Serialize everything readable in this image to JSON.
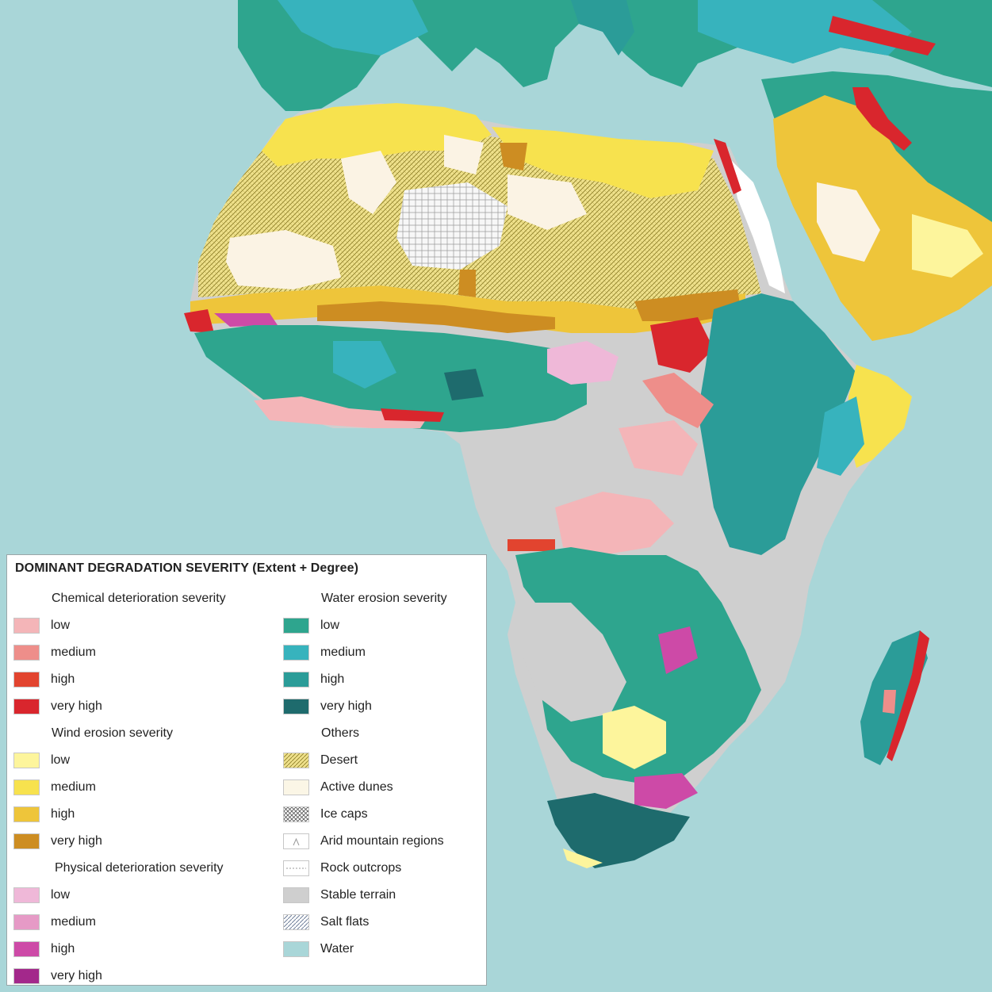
{
  "legend": {
    "title": "DOMINANT DEGRADATION SEVERITY (Extent + Degree)",
    "chemical": {
      "title": "Chemical deterioration severity",
      "items": [
        {
          "label": "low",
          "color": "#f4b5b8"
        },
        {
          "label": "medium",
          "color": "#ee8e8a"
        },
        {
          "label": "high",
          "color": "#e2442f"
        },
        {
          "label": "very high",
          "color": "#d9262d"
        }
      ]
    },
    "wind": {
      "title": "Wind erosion severity",
      "items": [
        {
          "label": "low",
          "color": "#fdf59c"
        },
        {
          "label": "medium",
          "color": "#f7e24e"
        },
        {
          "label": "high",
          "color": "#eec53a"
        },
        {
          "label": "very high",
          "color": "#cd8d22"
        }
      ]
    },
    "physical": {
      "title": "Physical deterioration severity",
      "items": [
        {
          "label": "low",
          "color": "#efb8d8"
        },
        {
          "label": "medium",
          "color": "#e69ac6"
        },
        {
          "label": "high",
          "color": "#cd4aa7"
        },
        {
          "label": "very high",
          "color": "#a3288b"
        }
      ]
    },
    "water": {
      "title": "Water erosion severity",
      "items": [
        {
          "label": "low",
          "color": "#2ea58e"
        },
        {
          "label": "medium",
          "color": "#37b3bd"
        },
        {
          "label": "high",
          "color": "#2b9c98"
        },
        {
          "label": "very high",
          "color": "#1e6b6d"
        }
      ]
    },
    "others": {
      "title": "Others",
      "items": [
        {
          "label": "Desert",
          "pattern": "desert"
        },
        {
          "label": "Active dunes",
          "pattern": "dunes"
        },
        {
          "label": "Ice caps",
          "pattern": "ice"
        },
        {
          "label": "Arid mountain regions",
          "pattern": "arid"
        },
        {
          "label": "Rock outcrops",
          "pattern": "rock"
        },
        {
          "label": "Stable terrain",
          "pattern": "stable"
        },
        {
          "label": "Salt flats",
          "pattern": "salt"
        },
        {
          "label": "Water",
          "pattern": "water"
        }
      ]
    }
  }
}
